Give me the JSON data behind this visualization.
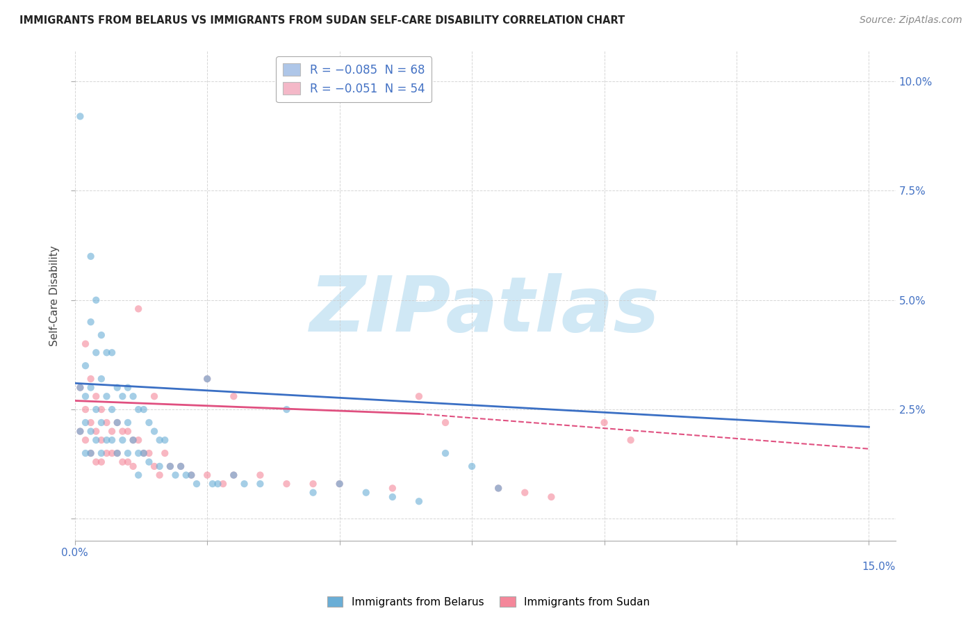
{
  "title": "IMMIGRANTS FROM BELARUS VS IMMIGRANTS FROM SUDAN SELF-CARE DISABILITY CORRELATION CHART",
  "source": "Source: ZipAtlas.com",
  "ylabel": "Self-Care Disability",
  "xlim": [
    0.0,
    0.155
  ],
  "ylim": [
    -0.005,
    0.107
  ],
  "xticks": [
    0.0,
    0.025,
    0.05,
    0.075,
    0.1,
    0.125,
    0.15
  ],
  "yticks": [
    0.0,
    0.025,
    0.05,
    0.075,
    0.1
  ],
  "legend_entries": [
    {
      "label": "R = −0.085  N = 68",
      "color": "#aec6e8"
    },
    {
      "label": "R = −0.051  N = 54",
      "color": "#f4b8c8"
    }
  ],
  "belarus_color": "#6aaed6",
  "sudan_color": "#f4879a",
  "belarus_trend_color": "#3a6fc4",
  "sudan_trend_color": "#e05080",
  "watermark": "ZIPatlas",
  "watermark_color": "#d0e8f5",
  "background_color": "#ffffff",
  "grid_color": "#cccccc",
  "scatter_alpha": 0.6,
  "scatter_size": 55,
  "belarus_x": [
    0.001,
    0.001,
    0.001,
    0.002,
    0.002,
    0.002,
    0.002,
    0.003,
    0.003,
    0.003,
    0.003,
    0.003,
    0.004,
    0.004,
    0.004,
    0.004,
    0.005,
    0.005,
    0.005,
    0.005,
    0.006,
    0.006,
    0.006,
    0.007,
    0.007,
    0.007,
    0.008,
    0.008,
    0.008,
    0.009,
    0.009,
    0.01,
    0.01,
    0.01,
    0.011,
    0.011,
    0.012,
    0.012,
    0.013,
    0.013,
    0.014,
    0.014,
    0.015,
    0.016,
    0.016,
    0.017,
    0.018,
    0.019,
    0.02,
    0.021,
    0.022,
    0.023,
    0.025,
    0.026,
    0.027,
    0.03,
    0.032,
    0.035,
    0.04,
    0.045,
    0.05,
    0.055,
    0.06,
    0.065,
    0.07,
    0.075,
    0.08,
    0.012
  ],
  "belarus_y": [
    0.092,
    0.03,
    0.02,
    0.035,
    0.028,
    0.022,
    0.015,
    0.06,
    0.045,
    0.03,
    0.02,
    0.015,
    0.05,
    0.038,
    0.025,
    0.018,
    0.042,
    0.032,
    0.022,
    0.015,
    0.038,
    0.028,
    0.018,
    0.038,
    0.025,
    0.018,
    0.03,
    0.022,
    0.015,
    0.028,
    0.018,
    0.03,
    0.022,
    0.015,
    0.028,
    0.018,
    0.025,
    0.015,
    0.025,
    0.015,
    0.022,
    0.013,
    0.02,
    0.018,
    0.012,
    0.018,
    0.012,
    0.01,
    0.012,
    0.01,
    0.01,
    0.008,
    0.032,
    0.008,
    0.008,
    0.01,
    0.008,
    0.008,
    0.025,
    0.006,
    0.008,
    0.006,
    0.005,
    0.004,
    0.015,
    0.012,
    0.007,
    0.01
  ],
  "sudan_x": [
    0.001,
    0.001,
    0.002,
    0.002,
    0.002,
    0.003,
    0.003,
    0.003,
    0.004,
    0.004,
    0.004,
    0.005,
    0.005,
    0.005,
    0.006,
    0.006,
    0.007,
    0.007,
    0.008,
    0.008,
    0.009,
    0.009,
    0.01,
    0.01,
    0.011,
    0.011,
    0.012,
    0.012,
    0.013,
    0.014,
    0.015,
    0.015,
    0.016,
    0.017,
    0.018,
    0.02,
    0.022,
    0.025,
    0.025,
    0.028,
    0.03,
    0.03,
    0.035,
    0.04,
    0.045,
    0.05,
    0.06,
    0.065,
    0.07,
    0.08,
    0.085,
    0.09,
    0.1,
    0.105
  ],
  "sudan_y": [
    0.03,
    0.02,
    0.04,
    0.025,
    0.018,
    0.032,
    0.022,
    0.015,
    0.028,
    0.02,
    0.013,
    0.025,
    0.018,
    0.013,
    0.022,
    0.015,
    0.02,
    0.015,
    0.022,
    0.015,
    0.02,
    0.013,
    0.02,
    0.013,
    0.018,
    0.012,
    0.018,
    0.048,
    0.015,
    0.015,
    0.012,
    0.028,
    0.01,
    0.015,
    0.012,
    0.012,
    0.01,
    0.01,
    0.032,
    0.008,
    0.01,
    0.028,
    0.01,
    0.008,
    0.008,
    0.008,
    0.007,
    0.028,
    0.022,
    0.007,
    0.006,
    0.005,
    0.022,
    0.018
  ],
  "belarus_trend_start_x": 0.0,
  "belarus_trend_end_x": 0.15,
  "belarus_trend_start_y": 0.031,
  "belarus_trend_end_y": 0.021,
  "sudan_trend_start_x": 0.0,
  "sudan_trend_end_x": 0.15,
  "sudan_trend_start_y": 0.027,
  "sudan_trend_end_y": 0.025,
  "sudan_trend_dashed_start_x": 0.065,
  "sudan_trend_dashed_end_x": 0.15,
  "sudan_trend_dashed_start_y": 0.024,
  "sudan_trend_dashed_end_y": 0.016
}
